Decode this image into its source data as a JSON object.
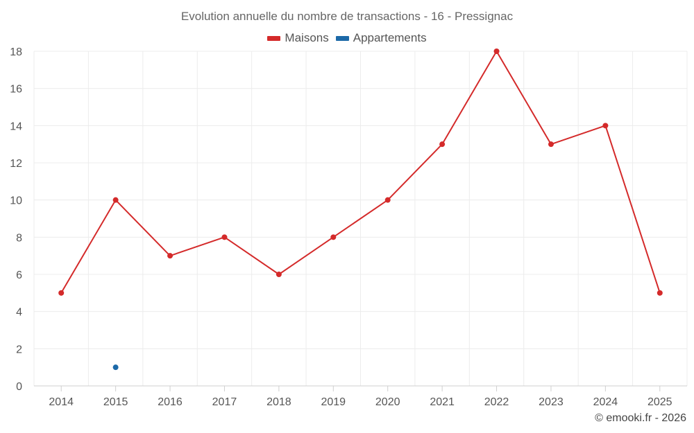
{
  "chart_data": {
    "type": "line",
    "title": "Evolution annuelle du nombre de transactions - 16 - Pressignac",
    "categories": [
      "2014",
      "2015",
      "2016",
      "2017",
      "2018",
      "2019",
      "2020",
      "2021",
      "2022",
      "2023",
      "2024",
      "2025"
    ],
    "series": [
      {
        "name": "Maisons",
        "color": "#d42a2a",
        "values": [
          5,
          10,
          7,
          8,
          6,
          8,
          10,
          13,
          18,
          13,
          14,
          5
        ]
      },
      {
        "name": "Appartements",
        "color": "#1c69a8",
        "values": [
          null,
          1,
          null,
          null,
          null,
          null,
          null,
          null,
          null,
          null,
          null,
          null
        ]
      }
    ],
    "ylim": [
      0,
      18
    ],
    "yticks": [
      0,
      2,
      4,
      6,
      8,
      10,
      12,
      14,
      16,
      18
    ],
    "xlabel": "",
    "ylabel": "",
    "grid": true,
    "legend_position": "top-center"
  },
  "credit": "© emooki.fr - 2026"
}
